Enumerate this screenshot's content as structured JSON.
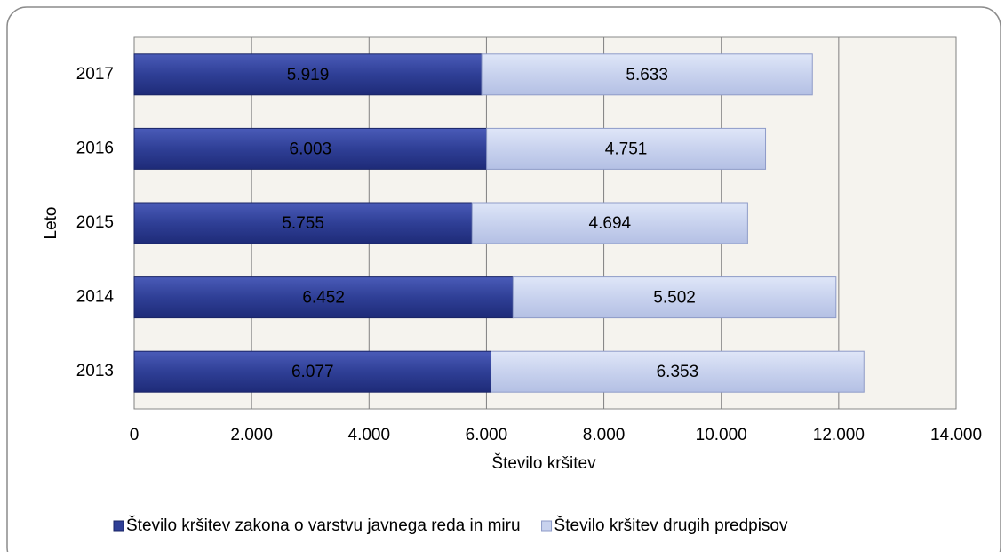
{
  "chart_data": {
    "type": "stacked-bar-horizontal",
    "categories": [
      "2013",
      "2014",
      "2015",
      "2016",
      "2017"
    ],
    "series": [
      {
        "name": "Število kršitev zakona o varstvu javnega reda in miru",
        "color": "#2f3f96",
        "values": [
          6077,
          6452,
          5755,
          6003,
          5919
        ],
        "value_labels": [
          "6.077",
          "6.452",
          "5.755",
          "6.003",
          "5.919"
        ]
      },
      {
        "name": "Število kršitev drugih predpisov",
        "color": "#c8d2ee",
        "values": [
          6353,
          5502,
          4694,
          4751,
          5633
        ],
        "value_labels": [
          "6.353",
          "5.502",
          "4.694",
          "4.751",
          "5.633"
        ]
      }
    ],
    "xlabel": "Število kršitev",
    "ylabel": "Leto",
    "xlim": [
      0,
      14000
    ],
    "xticks": [
      0,
      {
        "value": 2000,
        "label": "2.000"
      },
      {
        "value": 4000,
        "label": "4.000"
      },
      {
        "value": 6000,
        "label": "6.000"
      },
      {
        "value": 8000,
        "label": "8.000"
      },
      {
        "value": 10000,
        "label": "10.000"
      },
      {
        "value": 12000,
        "label": "12.000"
      },
      {
        "value": 14000,
        "label": "14.000"
      }
    ],
    "grid": true,
    "legend": "bottom"
  }
}
